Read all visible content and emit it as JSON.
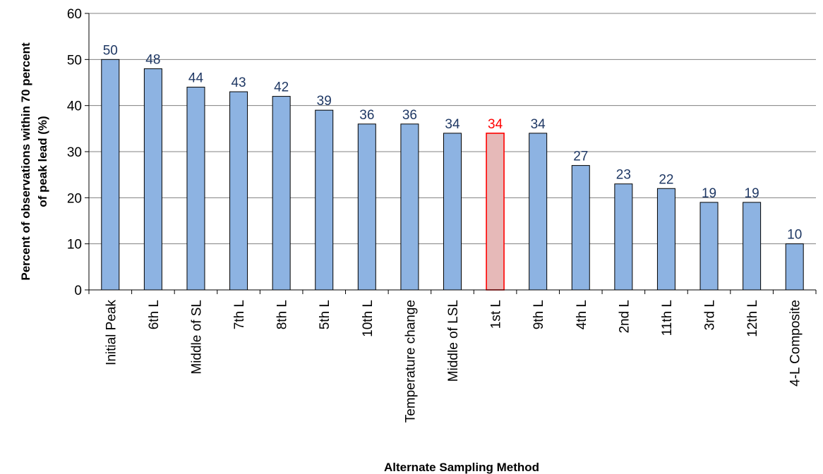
{
  "chart_data": {
    "type": "bar",
    "title": "",
    "xlabel": "Alternate Sampling Method",
    "ylabel_lines": [
      "Percent of observations within 70 percent",
      "of peak lead (%)"
    ],
    "categories": [
      "Initial Peak",
      "6th L",
      "Middle of SL",
      "7th L",
      "8th L",
      "5th L",
      "10th L",
      "Temperature change",
      "Middle of LSL",
      "1st L",
      "9th L",
      "4th L",
      "2nd L",
      "11th L",
      "3rd L",
      "12th L",
      "4-L Composite"
    ],
    "values": [
      50,
      48,
      44,
      43,
      42,
      39,
      36,
      36,
      34,
      34,
      34,
      27,
      23,
      22,
      19,
      19,
      10
    ],
    "data_labels": [
      "50",
      "48",
      "44",
      "43",
      "42",
      "39",
      "36",
      "36",
      "34",
      "34",
      "34",
      "27",
      "23",
      "22",
      "19",
      "19",
      "10"
    ],
    "highlight_category": "1st L",
    "ylim": [
      0,
      60
    ],
    "yticks": [
      "0",
      "10",
      "20",
      "30",
      "40",
      "50",
      "60"
    ],
    "grid": true,
    "colors": {
      "bar_fill": "#8db3e2",
      "bar_stroke": "#000000",
      "highlight_fill": "#e6b9b8",
      "highlight_stroke": "#ff0000",
      "label_color": "#1f3864",
      "highlight_label_color": "#ff0000",
      "grid": "#808080"
    }
  }
}
